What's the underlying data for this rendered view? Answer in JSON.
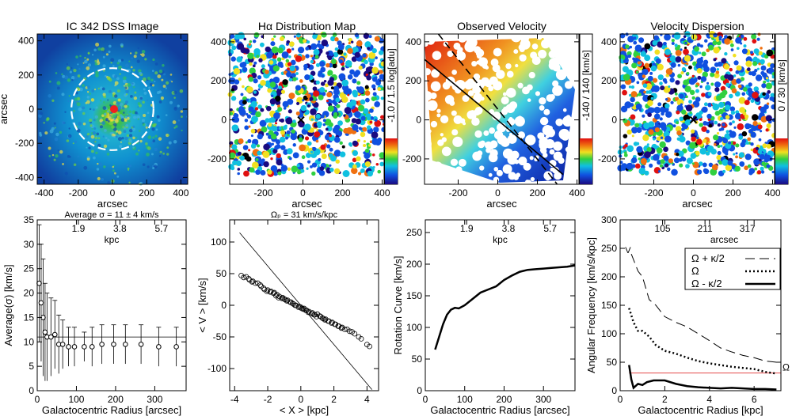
{
  "colors": {
    "velocity_red": "#e02010",
    "velocity_blue": "#0a1a9a",
    "axis": "#000000",
    "pattern_line": "#e03030"
  },
  "chart_data": [
    {
      "id": "dss",
      "type": "image",
      "title": "IC 342 DSS Image",
      "xlabel": "arcsec",
      "ylabel": "arcsec",
      "xlim": [
        -440,
        440
      ],
      "ylim": [
        -440,
        440
      ],
      "xticks": [
        -400,
        -200,
        0,
        200,
        400
      ],
      "yticks": [
        -400,
        -200,
        0,
        200,
        400
      ],
      "annotation": "dashed circle radius ~240 arcsec"
    },
    {
      "id": "halpha",
      "type": "image",
      "title": "Hα Distribution Map",
      "xlabel": "arcsec",
      "xlim": [
        -370,
        410
      ],
      "ylim": [
        -330,
        440
      ],
      "xticks": [
        -200,
        0,
        200,
        400
      ],
      "yticks": [
        -200,
        0,
        200,
        400
      ],
      "colorbar_label": "-1.0 / 1.5  log[adu]"
    },
    {
      "id": "velocity",
      "type": "image",
      "title": "Observed Velocity",
      "xlabel": "arcsec",
      "xlim": [
        -370,
        410
      ],
      "ylim": [
        -330,
        440
      ],
      "xticks": [
        -200,
        0,
        200,
        400
      ],
      "yticks": [
        -200,
        0,
        200,
        400
      ],
      "colorbar_label": "-140 / 140  [km/s]"
    },
    {
      "id": "dispersion",
      "type": "image",
      "title": "Velocity Dispersion",
      "xlabel": "arcsec",
      "xlim": [
        -370,
        410
      ],
      "ylim": [
        -330,
        440
      ],
      "xticks": [
        -200,
        0,
        200,
        400
      ],
      "yticks": [
        -200,
        0,
        200,
        400
      ],
      "colorbar_label": "0 / 30  [km/s]"
    },
    {
      "id": "avg_sigma",
      "type": "scatter",
      "title": "Average σ = 11 ± 4 km/s",
      "xlabel": "Galactocentric Radius [arcsec]",
      "ylabel": "Average(σ) [km/s]",
      "top_axis_label": "kpc",
      "top_ticks": [
        "1.9",
        "3.8",
        "5.7"
      ],
      "top_ticks_arcsec": [
        105,
        211,
        317
      ],
      "xlim": [
        0,
        380
      ],
      "ylim": [
        0,
        35
      ],
      "xticks": [
        0,
        100,
        200,
        300
      ],
      "yticks": [
        0,
        5,
        10,
        15,
        20,
        25,
        30,
        35
      ],
      "x": [
        5,
        10,
        15,
        20,
        25,
        35,
        45,
        55,
        65,
        80,
        95,
        120,
        140,
        165,
        195,
        225,
        265,
        310,
        355
      ],
      "y": [
        22,
        18,
        15,
        12,
        11,
        11,
        11.5,
        9.5,
        9.5,
        9,
        9,
        9,
        9,
        9.5,
        9.5,
        9.5,
        9.5,
        9,
        9
      ],
      "err": [
        12,
        12,
        12,
        10,
        9,
        8,
        7,
        6,
        5,
        4,
        4,
        3,
        4,
        4,
        4,
        4,
        4,
        4,
        4
      ],
      "mean_line": 11
    },
    {
      "id": "pattern",
      "type": "scatter",
      "title": "Ωₚ = 31  km/s/kpc",
      "xlabel": "< X >  [kpc]",
      "ylabel": "< V >  [km/s]",
      "xlim": [
        -4.3,
        4.7
      ],
      "ylim": [
        -135,
        135
      ],
      "xticks": [
        -4,
        -2,
        0,
        2,
        4
      ],
      "yticks": [
        -100,
        -50,
        0,
        50,
        100
      ],
      "x": [
        -3.6,
        -3.3,
        -3.1,
        -2.9,
        -2.6,
        -2.4,
        -2.2,
        -2.0,
        -1.8,
        -1.6,
        -1.5,
        -1.3,
        -1.1,
        -1.0,
        -0.8,
        -0.6,
        -0.5,
        -0.3,
        -0.1,
        0.0,
        0.2,
        0.3,
        0.5,
        0.7,
        0.8,
        1.0,
        1.2,
        1.3,
        1.5,
        1.7,
        1.9,
        2.1,
        2.3,
        2.5,
        2.8,
        3.1,
        3.5,
        4.0
      ],
      "y": [
        47,
        45,
        40,
        38,
        35,
        30,
        25,
        24,
        22,
        20,
        15,
        14,
        12,
        10,
        8,
        5,
        3,
        0,
        -2,
        -3,
        -5,
        -8,
        -10,
        -12,
        -15,
        -14,
        -18,
        -20,
        -22,
        -25,
        -27,
        -30,
        -33,
        -35,
        -38,
        -42,
        -50,
        -62
      ],
      "fit_slope": -31,
      "fit_intercept": 0
    },
    {
      "id": "rotation",
      "type": "line",
      "xlabel": "Galactocentric Radius [arcsec]",
      "ylabel": "Rotation Curve [km/s]",
      "top_axis_label": "kpc",
      "top_ticks": [
        "1.9",
        "3.8",
        "5.7"
      ],
      "top_ticks_arcsec": [
        105,
        211,
        317
      ],
      "xlim": [
        0,
        380
      ],
      "ylim": [
        0,
        270
      ],
      "xticks": [
        0,
        100,
        200,
        300
      ],
      "yticks": [
        0,
        50,
        100,
        150,
        200,
        250
      ],
      "x": [
        25,
        35,
        45,
        55,
        65,
        75,
        85,
        100,
        120,
        140,
        160,
        180,
        200,
        220,
        240,
        260,
        280,
        300,
        320,
        340,
        360,
        380
      ],
      "y": [
        65,
        85,
        105,
        120,
        128,
        131,
        130,
        135,
        145,
        155,
        160,
        165,
        175,
        182,
        188,
        191,
        192,
        193,
        194,
        195,
        196,
        198
      ]
    },
    {
      "id": "angular",
      "type": "line",
      "xlabel": "Galactocentric Radius [kpc]",
      "ylabel": "Angular Frequency [km/s/kpc]",
      "top_axis_label": "arcsec",
      "top_ticks": [
        "105",
        "211",
        "317"
      ],
      "top_ticks_kpc": [
        1.9,
        3.8,
        5.7
      ],
      "xlim": [
        0,
        7.2
      ],
      "ylim": [
        0,
        300
      ],
      "xticks": [
        0,
        2,
        4,
        6
      ],
      "yticks": [
        0,
        50,
        100,
        150,
        200,
        250,
        300
      ],
      "legend": [
        "Ω + κ/2",
        "Ω",
        "Ω - κ/2"
      ],
      "marker_label": "V",
      "pattern_label": "Ω",
      "series": [
        {
          "name": "Ω + κ/2",
          "style": "dash",
          "x": [
            0.5,
            0.8,
            1.0,
            1.3,
            1.6,
            2.0,
            2.5,
            3.0,
            3.5,
            4.0,
            4.5,
            5.0,
            5.5,
            6.0,
            6.5,
            7.0
          ],
          "y": [
            240,
            210,
            200,
            160,
            150,
            130,
            120,
            112,
            100,
            88,
            75,
            68,
            62,
            58,
            52,
            50
          ]
        },
        {
          "name": "Ω",
          "style": "dot",
          "x": [
            0.4,
            0.6,
            0.8,
            1.0,
            1.3,
            1.6,
            2.0,
            2.5,
            3.0,
            3.5,
            4.0,
            4.5,
            5.0,
            5.5,
            6.0,
            6.5,
            7.0
          ],
          "y": [
            145,
            120,
            105,
            105,
            95,
            80,
            70,
            65,
            58,
            52,
            48,
            45,
            42,
            40,
            38,
            33,
            30
          ]
        },
        {
          "name": "Ω - κ/2",
          "style": "solid",
          "x": [
            0.4,
            0.5,
            0.6,
            0.8,
            1.0,
            1.2,
            1.5,
            2.0,
            2.5,
            3.0,
            3.5,
            4.0,
            4.5,
            5.0,
            5.5,
            6.0,
            6.5,
            7.0
          ],
          "y": [
            45,
            20,
            5,
            12,
            10,
            15,
            18,
            18,
            12,
            8,
            6,
            5,
            4,
            5,
            4,
            3,
            3,
            2
          ]
        }
      ],
      "pattern_speed": 31
    }
  ]
}
